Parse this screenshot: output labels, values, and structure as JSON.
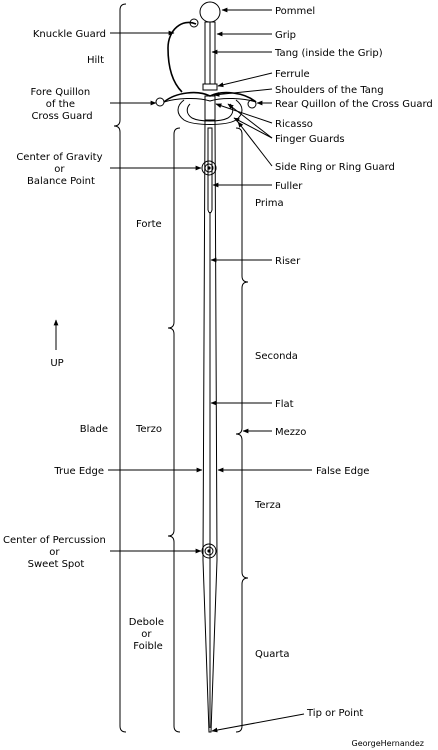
{
  "colors": {
    "ink": "#000000",
    "background": "#ffffff"
  },
  "icons": {
    "up_arrow": "up-arrow-icon"
  },
  "labels": {
    "pommel": "Pommel",
    "grip": "Grip",
    "tang": "Tang (inside the Grip)",
    "ferrule": "Ferrule",
    "shoulders": "Shoulders of the Tang",
    "rear_quillon": "Rear Quillon of the Cross Guard",
    "ricasso": "Ricasso",
    "finger_guards": "Finger Guards",
    "side_ring": "Side Ring or Ring Guard",
    "fuller": "Fuller",
    "riser": "Riser",
    "flat": "Flat",
    "mezzo": "Mezzo",
    "false_edge": "False Edge",
    "tip": "Tip or Point",
    "knuckle_guard": "Knuckle Guard",
    "hilt": "Hilt",
    "fore_quillon": [
      "Fore Quillon",
      "of the",
      "Cross Guard"
    ],
    "center_gravity": [
      "Center of Gravity",
      "or",
      "Balance Point"
    ],
    "true_edge": "True Edge",
    "center_percussion": [
      "Center of Percussion",
      "or",
      "Sweet Spot"
    ],
    "up": "UP",
    "blade": "Blade",
    "forte": "Forte",
    "terzo": "Terzo",
    "debole": [
      "Debole",
      "or",
      "Foible"
    ],
    "prima": "Prima",
    "seconda": "Seconda",
    "terza": "Terza",
    "quarta": "Quarta"
  },
  "credit": "GeorgeHernandez"
}
